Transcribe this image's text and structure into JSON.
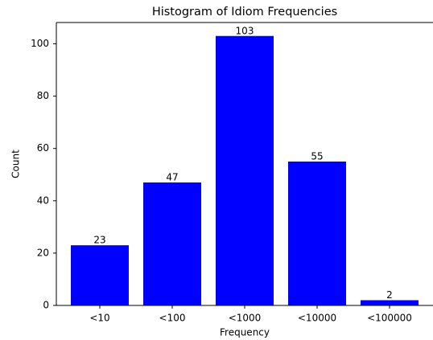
{
  "chart_data": {
    "type": "bar",
    "title": "Histogram of Idiom Frequencies",
    "xlabel": "Frequency",
    "ylabel": "Count",
    "categories": [
      "<10",
      "<100",
      "<1000",
      "<10000",
      "<100000"
    ],
    "values": [
      23,
      47,
      103,
      55,
      2
    ],
    "color": "#0000ff",
    "ylim": [
      0,
      108.15
    ],
    "yticks": [
      0,
      20,
      40,
      60,
      80,
      100
    ],
    "grid": false
  }
}
